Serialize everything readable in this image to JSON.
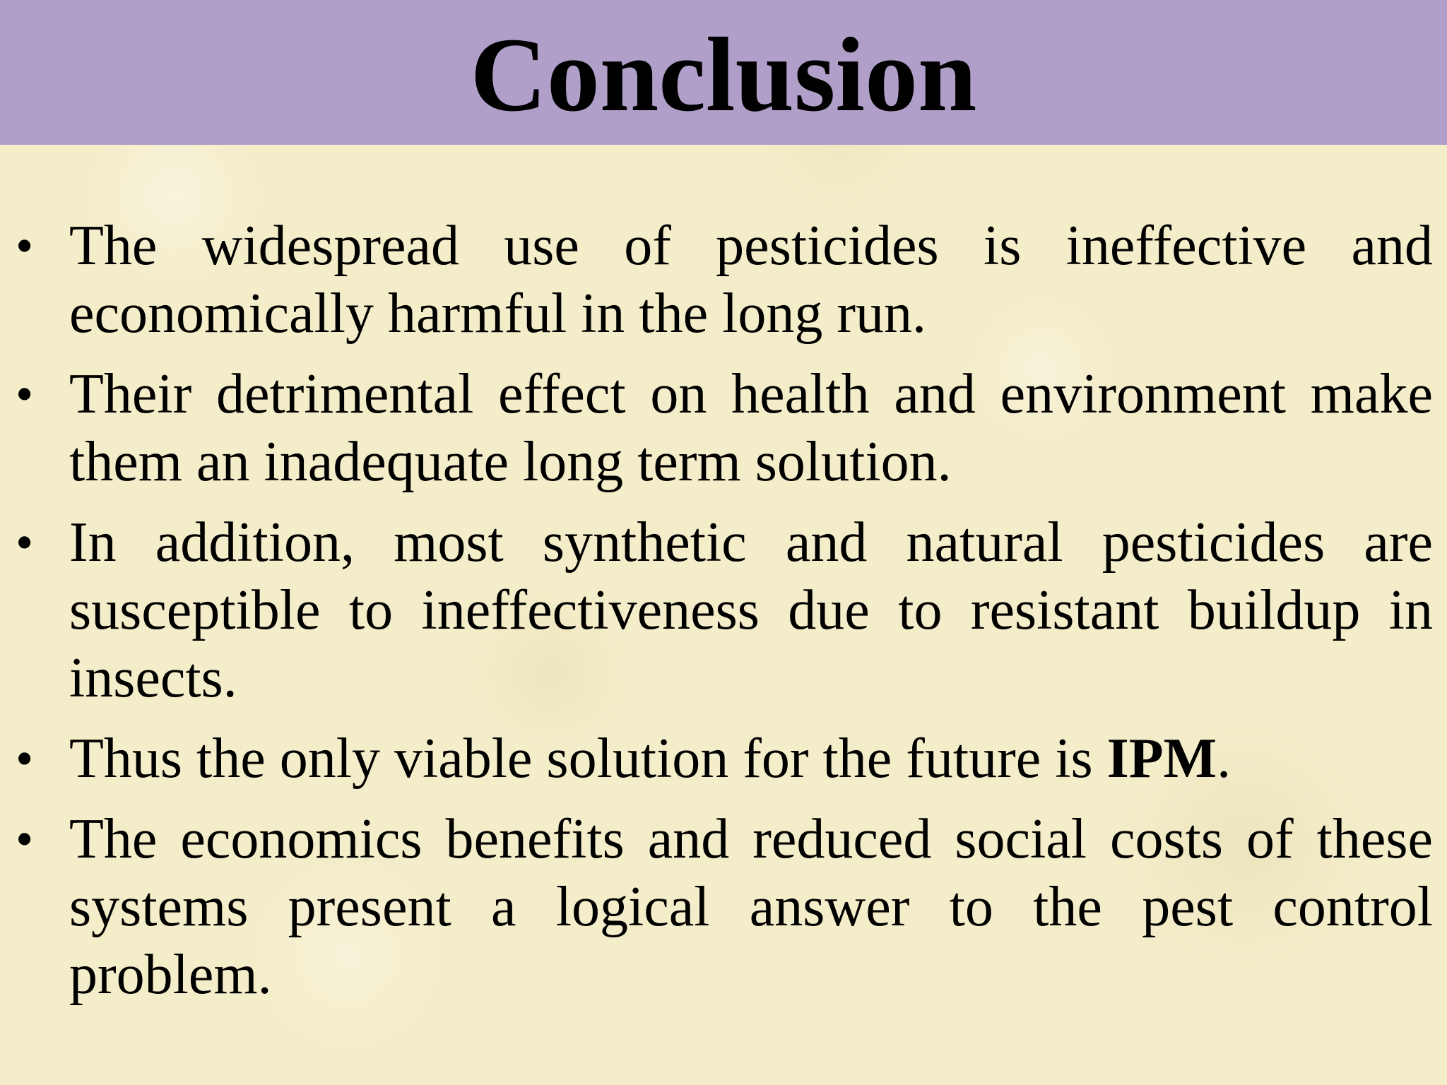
{
  "slide": {
    "title": "Conclusion",
    "bullets": [
      {
        "text": "The  widespread use of pesticides is ineffective and economically harmful in the long run."
      },
      {
        "text": "Their detrimental effect on health and environment make them an inadequate long term solution."
      },
      {
        "text": "In addition, most synthetic and natural pesticides are susceptible to ineffectiveness due to resistant buildup in insects."
      },
      {
        "text_before": "Thus the only viable solution for the future is ",
        "text_bold": "IPM",
        "text_after": "."
      },
      {
        "text": "The economics benefits and reduced social costs of these systems present a logical answer to the pest control problem."
      }
    ],
    "bullet_symbol": "•"
  },
  "colors": {
    "title_bar": "#b09fc9",
    "background": "#f4edc9",
    "text": "#000000"
  }
}
